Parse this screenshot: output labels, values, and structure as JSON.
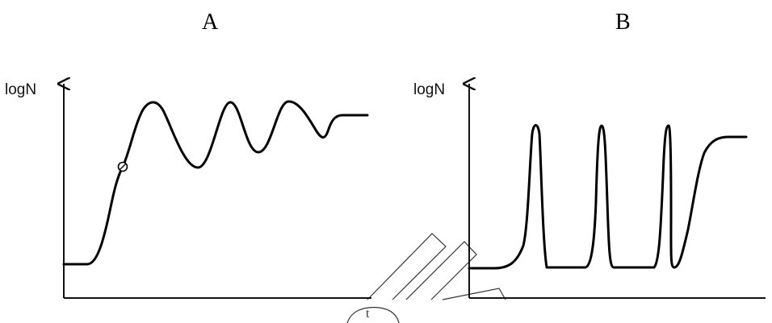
{
  "panels": [
    {
      "letter": "A",
      "y_axis_label": "logN"
    },
    {
      "letter": "B",
      "y_axis_label": "logN"
    }
  ],
  "watermark": {
    "glyph": "t"
  },
  "colors": {
    "line": "#000000",
    "background": "#ffffff"
  }
}
